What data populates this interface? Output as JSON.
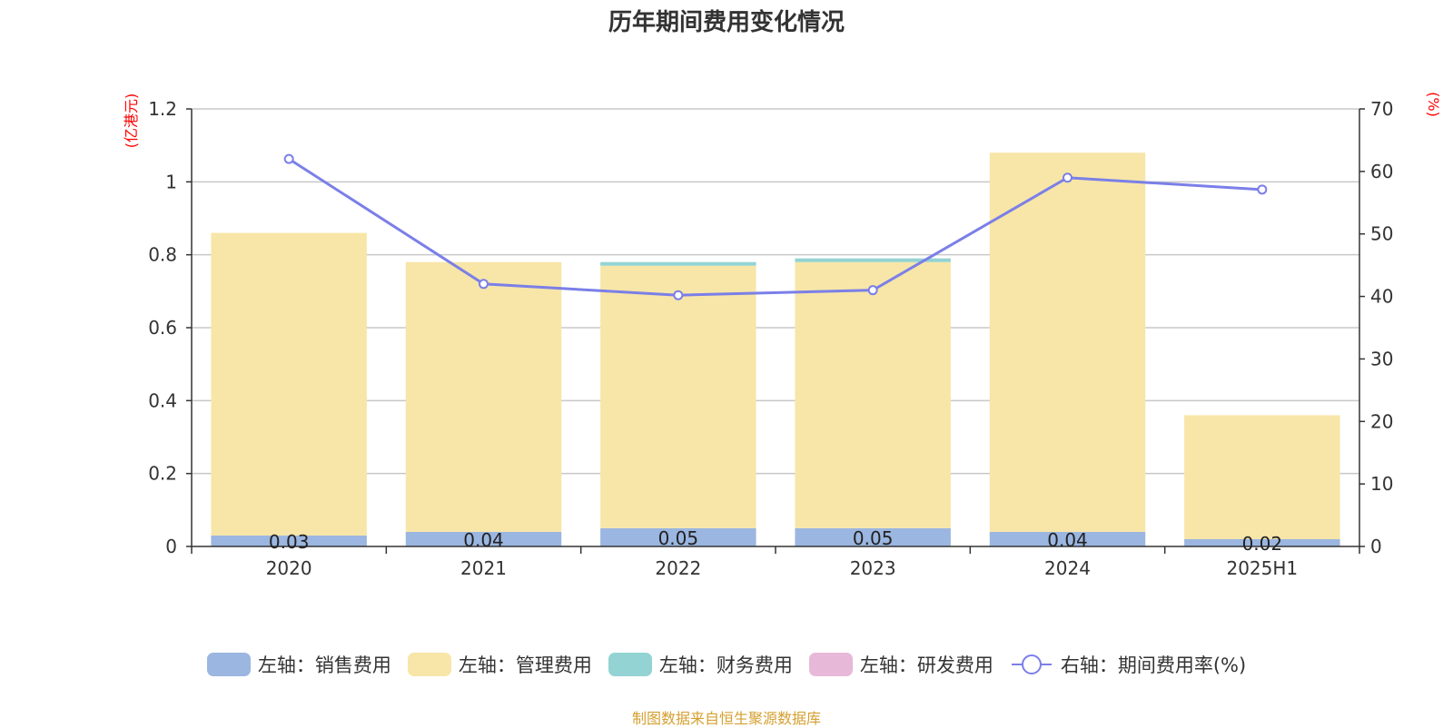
{
  "chart_data": {
    "type": "bar",
    "title": "历年期间费用变化情况",
    "categories": [
      "2020",
      "2021",
      "2022",
      "2023",
      "2024",
      "2025H1"
    ],
    "left_axis": {
      "unit_label": "(亿港元)",
      "ylim": [
        0,
        1.2
      ],
      "ticks": [
        "0",
        "0.2",
        "0.4",
        "0.6",
        "0.8",
        "1",
        "1.2"
      ]
    },
    "right_axis": {
      "unit_label": "(%)",
      "ylim": [
        0,
        70
      ],
      "ticks": [
        "0",
        "10",
        "20",
        "30",
        "40",
        "50",
        "60",
        "70"
      ]
    },
    "series": [
      {
        "name": "左轴：销售费用",
        "kind": "bar",
        "axis": "left",
        "color": "#9bb6e0",
        "values": [
          0.03,
          0.04,
          0.05,
          0.05,
          0.04,
          0.02
        ],
        "data_labels": [
          "0.03",
          "0.04",
          "0.05",
          "0.05",
          "0.04",
          "0.02"
        ]
      },
      {
        "name": "左轴：管理费用",
        "kind": "bar",
        "axis": "left",
        "color": "#f7e6a8",
        "values": [
          0.83,
          0.74,
          0.72,
          0.73,
          1.04,
          0.34
        ]
      },
      {
        "name": "左轴：财务费用",
        "kind": "bar",
        "axis": "left",
        "color": "#94d3d3",
        "values": [
          0,
          0,
          0.01,
          0.01,
          0,
          0
        ]
      },
      {
        "name": "左轴：研发费用",
        "kind": "bar",
        "axis": "left",
        "color": "#e8b8d8",
        "values": [
          0,
          0,
          0,
          0,
          0,
          0
        ]
      },
      {
        "name": "右轴：期间费用率(%)",
        "kind": "line",
        "axis": "right",
        "color": "#7b7fe8",
        "values": [
          62,
          42,
          40.2,
          41,
          59,
          57.1
        ]
      }
    ],
    "grid": true,
    "legend_position": "bottom"
  },
  "footer": "制图数据来自恒生聚源数据库"
}
